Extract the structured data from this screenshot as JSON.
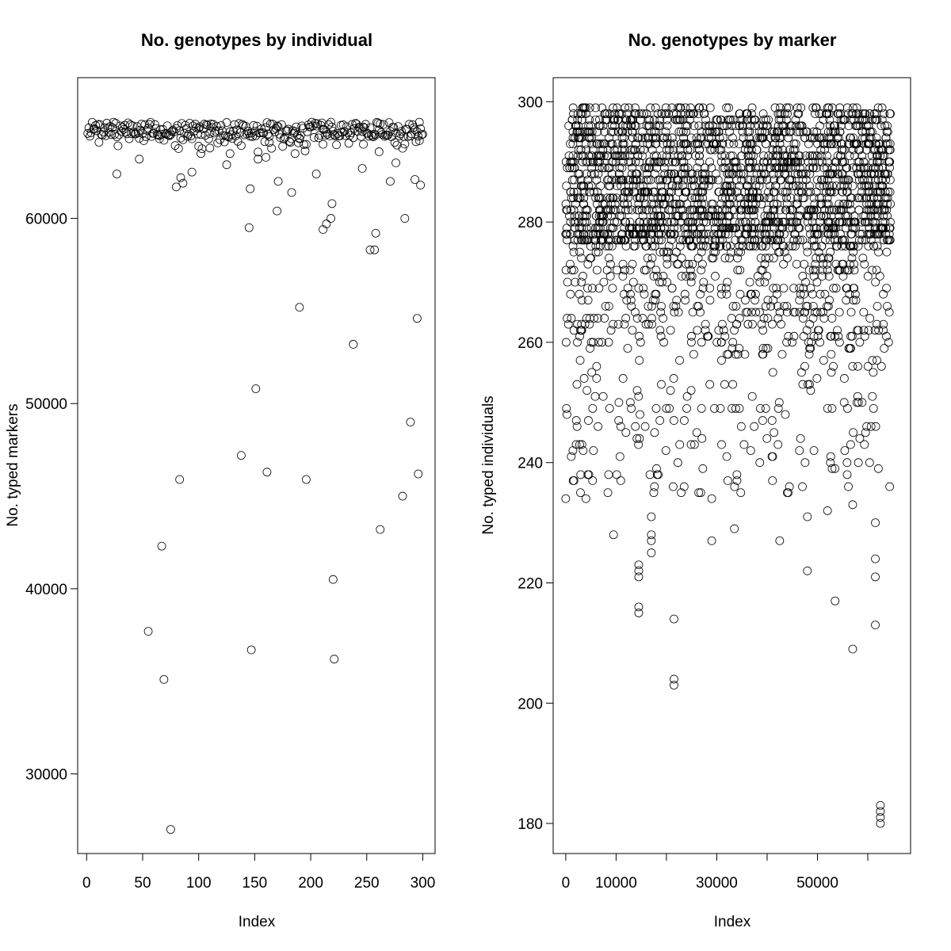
{
  "chart_data": [
    {
      "type": "scatter",
      "title": "No. genotypes by individual",
      "xlabel": "Index",
      "ylabel": "No. typed markers",
      "xlim": [
        -8,
        311
      ],
      "ylim": [
        25700,
        67600
      ],
      "xticks": [
        0,
        50,
        100,
        150,
        200,
        250,
        300
      ],
      "yticks": [
        30000,
        40000,
        50000,
        60000
      ],
      "grid": false,
      "marker": "open-circle",
      "typical": {
        "level": 64800,
        "spread": 400,
        "share": 0.78
      },
      "points": [
        [
          27,
          62400
        ],
        [
          47,
          63200
        ],
        [
          65,
          64300
        ],
        [
          80,
          61700
        ],
        [
          84,
          62200
        ],
        [
          86,
          61900
        ],
        [
          94,
          62500
        ],
        [
          100,
          63900
        ],
        [
          102,
          63500
        ],
        [
          110,
          63800
        ],
        [
          125,
          62900
        ],
        [
          128,
          63500
        ],
        [
          146,
          61600
        ],
        [
          145,
          59500
        ],
        [
          153,
          63200
        ],
        [
          160,
          63300
        ],
        [
          163,
          64100
        ],
        [
          170,
          60400
        ],
        [
          171,
          62000
        ],
        [
          183,
          61400
        ],
        [
          186,
          63500
        ],
        [
          190,
          64300
        ],
        [
          205,
          62400
        ],
        [
          211,
          64000
        ],
        [
          211,
          59400
        ],
        [
          214,
          59700
        ],
        [
          218,
          60000
        ],
        [
          219,
          60800
        ],
        [
          246,
          62700
        ],
        [
          247,
          64000
        ],
        [
          253,
          58300
        ],
        [
          257,
          58300
        ],
        [
          258,
          59200
        ],
        [
          261,
          63600
        ],
        [
          271,
          62000
        ],
        [
          276,
          63000
        ],
        [
          284,
          60000
        ],
        [
          293,
          62100
        ],
        [
          297,
          64200
        ],
        [
          298,
          61800
        ],
        [
          190,
          55200
        ],
        [
          238,
          53200
        ],
        [
          151,
          50800
        ],
        [
          138,
          47200
        ],
        [
          161,
          46300
        ],
        [
          83,
          45900
        ],
        [
          196,
          45900
        ],
        [
          289,
          49000
        ],
        [
          295,
          54600
        ],
        [
          296,
          46200
        ],
        [
          282,
          45000
        ],
        [
          67,
          42300
        ],
        [
          262,
          43200
        ],
        [
          220,
          40500
        ],
        [
          55,
          37700
        ],
        [
          147,
          36700
        ],
        [
          221,
          36200
        ],
        [
          69,
          35100
        ],
        [
          75,
          27000
        ]
      ]
    },
    {
      "type": "scatter",
      "title": "No. genotypes by marker",
      "xlabel": "Index",
      "ylabel": "No. typed individuals",
      "xlim": [
        -2500,
        68500
      ],
      "ylim": [
        175,
        304
      ],
      "xticks": [
        0,
        10000,
        20000,
        30000,
        40000,
        50000,
        60000
      ],
      "xtick_labels": [
        "0",
        "10000",
        "",
        "30000",
        "",
        "50000",
        ""
      ],
      "yticks": [
        180,
        200,
        220,
        240,
        260,
        280,
        300
      ],
      "grid": false,
      "marker": "open-circle",
      "typical": {
        "level_range": [
          276,
          299
        ],
        "share": 0.9
      },
      "points": [
        [
          14500,
          223
        ],
        [
          14500,
          222
        ],
        [
          14500,
          221
        ],
        [
          14500,
          216
        ],
        [
          14500,
          215
        ],
        [
          17000,
          231
        ],
        [
          17000,
          228
        ],
        [
          17000,
          227
        ],
        [
          17000,
          225
        ],
        [
          21500,
          214
        ],
        [
          21500,
          204
        ],
        [
          21500,
          203
        ],
        [
          9500,
          228
        ],
        [
          33500,
          229
        ],
        [
          42500,
          227
        ],
        [
          48000,
          222
        ],
        [
          53500,
          217
        ],
        [
          57000,
          233
        ],
        [
          57000,
          209
        ],
        [
          61500,
          230
        ],
        [
          61500,
          224
        ],
        [
          61500,
          221
        ],
        [
          61500,
          213
        ],
        [
          62500,
          183
        ],
        [
          62500,
          182
        ],
        [
          62500,
          181
        ],
        [
          62500,
          180
        ],
        [
          0,
          234
        ],
        [
          4000,
          234
        ],
        [
          29000,
          227
        ],
        [
          29000,
          234
        ],
        [
          34000,
          238
        ],
        [
          44000,
          235
        ],
        [
          52000,
          232
        ],
        [
          48000,
          231
        ]
      ]
    }
  ]
}
